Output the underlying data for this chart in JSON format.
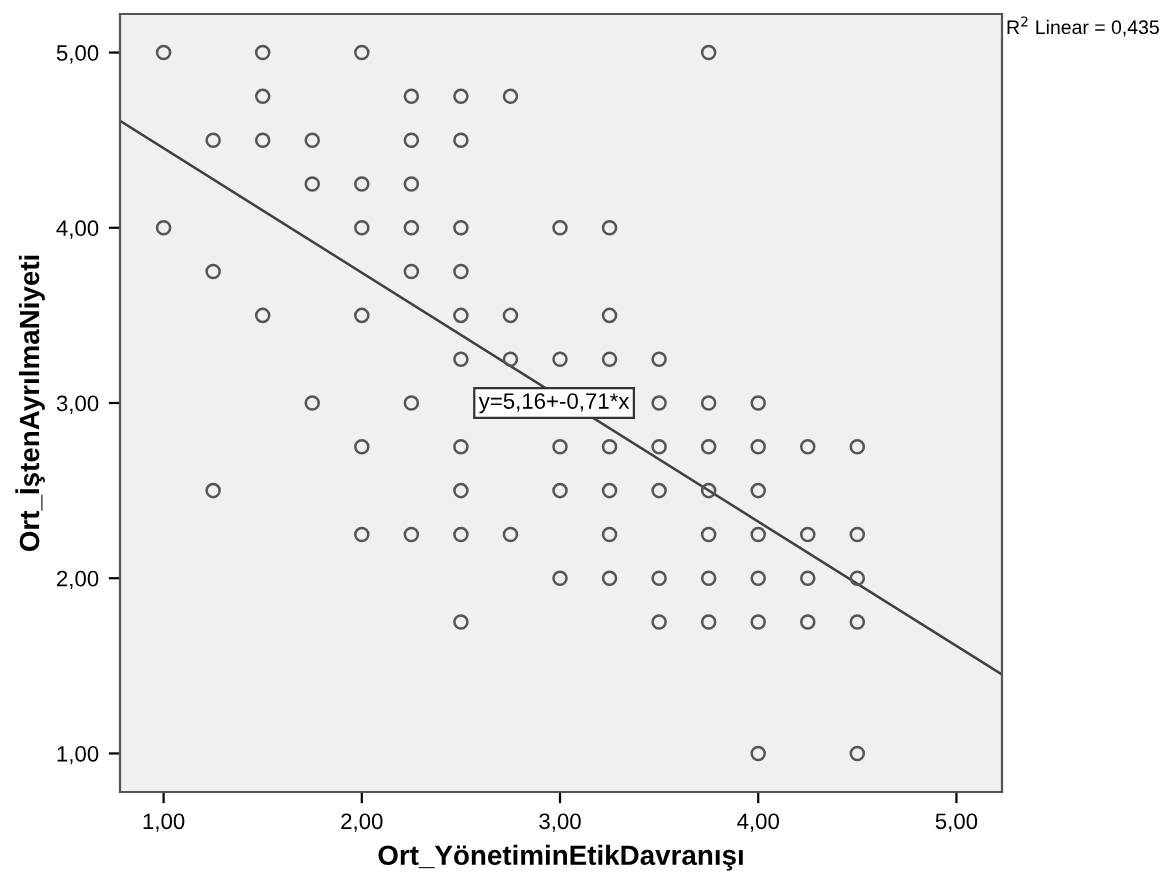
{
  "chart_data": {
    "type": "scatter",
    "xlabel": "Ort_YönetiminEtikDavranışı",
    "ylabel": "Ort_İştenAyrılmaNiyeti",
    "xlim": [
      0.78,
      5.23
    ],
    "ylim": [
      0.78,
      5.22
    ],
    "xticks": [
      {
        "value": 1,
        "label": "1,00"
      },
      {
        "value": 2,
        "label": "2,00"
      },
      {
        "value": 3,
        "label": "3,00"
      },
      {
        "value": 4,
        "label": "4,00"
      },
      {
        "value": 5,
        "label": "5,00"
      }
    ],
    "yticks": [
      {
        "value": 1,
        "label": "1,00"
      },
      {
        "value": 2,
        "label": "2,00"
      },
      {
        "value": 3,
        "label": "3,00"
      },
      {
        "value": 4,
        "label": "4,00"
      },
      {
        "value": 5,
        "label": "5,00"
      }
    ],
    "grid": false,
    "legend": false,
    "series": [
      {
        "marker": "circle",
        "color": "#555555",
        "x": [
          1.0,
          1.5,
          2.0,
          3.75,
          1.5,
          2.25,
          2.5,
          2.75,
          1.25,
          1.5,
          1.75,
          2.25,
          2.5,
          1.75,
          2.0,
          2.25,
          1.0,
          2.0,
          2.25,
          2.5,
          3.0,
          3.25,
          1.25,
          2.25,
          2.5,
          1.5,
          2.0,
          2.5,
          2.75,
          3.25,
          2.5,
          2.75,
          3.0,
          3.25,
          3.5,
          1.75,
          2.25,
          3.5,
          3.75,
          4.0,
          2.0,
          2.5,
          3.0,
          3.25,
          3.5,
          3.75,
          4.0,
          4.25,
          4.5,
          1.25,
          2.5,
          3.0,
          3.25,
          3.5,
          3.75,
          4.0,
          2.0,
          2.25,
          2.5,
          2.75,
          3.25,
          3.75,
          4.0,
          4.25,
          4.5,
          3.0,
          3.25,
          3.5,
          3.75,
          4.0,
          4.25,
          4.5,
          2.5,
          3.5,
          3.75,
          4.0,
          4.25,
          4.5,
          4.0,
          4.5
        ],
        "values": [
          5.0,
          5.0,
          5.0,
          5.0,
          4.75,
          4.75,
          4.75,
          4.75,
          4.5,
          4.5,
          4.5,
          4.5,
          4.5,
          4.25,
          4.25,
          4.25,
          4.0,
          4.0,
          4.0,
          4.0,
          4.0,
          4.0,
          3.75,
          3.75,
          3.75,
          3.5,
          3.5,
          3.5,
          3.5,
          3.5,
          3.25,
          3.25,
          3.25,
          3.25,
          3.25,
          3.0,
          3.0,
          3.0,
          3.0,
          3.0,
          2.75,
          2.75,
          2.75,
          2.75,
          2.75,
          2.75,
          2.75,
          2.75,
          2.75,
          2.5,
          2.5,
          2.5,
          2.5,
          2.5,
          2.5,
          2.5,
          2.25,
          2.25,
          2.25,
          2.25,
          2.25,
          2.25,
          2.25,
          2.25,
          2.25,
          2.0,
          2.0,
          2.0,
          2.0,
          2.0,
          2.0,
          2.0,
          1.75,
          1.75,
          1.75,
          1.75,
          1.75,
          1.75,
          1.0,
          1.0
        ]
      },
      {
        "type": "line",
        "marker": "none",
        "color": "#404040",
        "x": [
          0.78,
          5.23
        ],
        "values": [
          4.61,
          1.45
        ]
      }
    ],
    "annotations": [
      {
        "text": "y=5,16+-0,71*x",
        "x": 2.97,
        "y": 3.0
      },
      "R$^{2}$ Linear = 0,435"
    ]
  }
}
